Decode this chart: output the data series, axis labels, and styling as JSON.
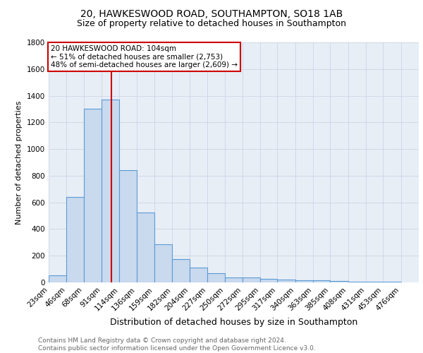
{
  "title1": "20, HAWKESWOOD ROAD, SOUTHAMPTON, SO18 1AB",
  "title2": "Size of property relative to detached houses in Southampton",
  "xlabel": "Distribution of detached houses by size in Southampton",
  "ylabel": "Number of detached properties",
  "bar_color": "#c9d9ee",
  "bar_edge_color": "#5b9bd5",
  "background_color": "#e8eef6",
  "grid_color": "#d0d8e8",
  "categories": [
    "23sqm",
    "46sqm",
    "68sqm",
    "91sqm",
    "114sqm",
    "136sqm",
    "159sqm",
    "182sqm",
    "204sqm",
    "227sqm",
    "250sqm",
    "272sqm",
    "295sqm",
    "317sqm",
    "340sqm",
    "363sqm",
    "385sqm",
    "408sqm",
    "431sqm",
    "453sqm",
    "476sqm"
  ],
  "bar_left_edges": [
    23,
    46,
    68,
    91,
    114,
    136,
    159,
    182,
    204,
    227,
    250,
    272,
    295,
    317,
    340,
    363,
    385,
    408,
    431,
    453
  ],
  "bar_widths": [
    23,
    22,
    23,
    23,
    22,
    23,
    23,
    22,
    23,
    23,
    22,
    23,
    22,
    23,
    23,
    22,
    23,
    23,
    22,
    23
  ],
  "bar_heights": [
    55,
    640,
    1300,
    1370,
    840,
    525,
    285,
    175,
    110,
    70,
    35,
    35,
    25,
    20,
    15,
    15,
    10,
    5,
    5,
    5
  ],
  "ylim": [
    0,
    1800
  ],
  "yticks": [
    0,
    200,
    400,
    600,
    800,
    1000,
    1200,
    1400,
    1600,
    1800
  ],
  "property_size": 104,
  "annotation_line1": "20 HAWKESWOOD ROAD: 104sqm",
  "annotation_line2": "← 51% of detached houses are smaller (2,753)",
  "annotation_line3": "48% of semi-detached houses are larger (2,609) →",
  "annotation_box_color": "#ffffff",
  "annotation_box_edge_color": "#cc0000",
  "vline_color": "#cc0000",
  "footer_text": "Contains HM Land Registry data © Crown copyright and database right 2024.\nContains public sector information licensed under the Open Government Licence v3.0.",
  "title1_fontsize": 10,
  "title2_fontsize": 9,
  "xlabel_fontsize": 9,
  "ylabel_fontsize": 8,
  "tick_fontsize": 7.5,
  "annotation_fontsize": 7.5,
  "footer_fontsize": 6.5
}
